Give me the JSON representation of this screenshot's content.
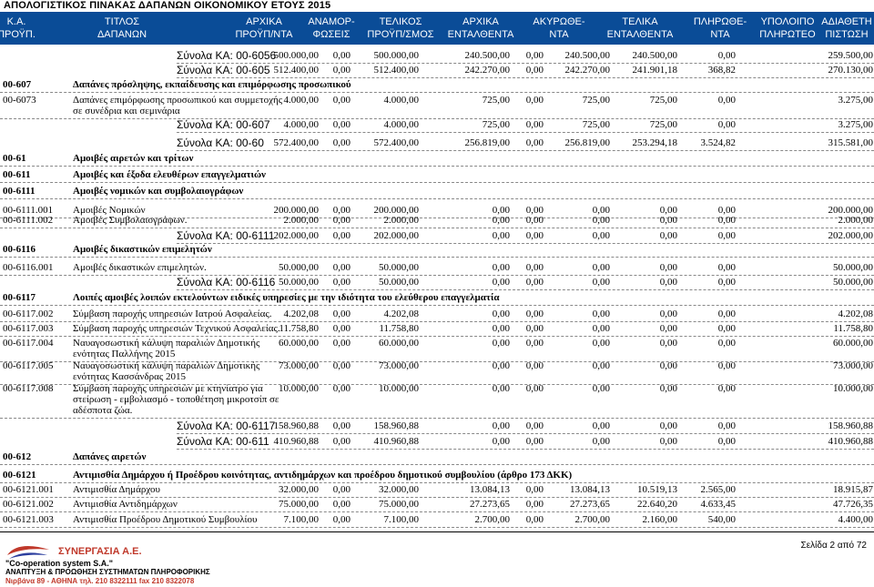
{
  "doc_title": "ΑΠΟΛΟΓΙΣΤΙΚΟΣ ΠΙΝΑΚΑΣ ΔΑΠΑΝΩΝ ΟΙΚΟΝΟΜΙΚΟΥ ΕΤΟΥΣ 2015",
  "header": {
    "columns": [
      [
        "Κ.Α.",
        "ΠΡΟΫΠ."
      ],
      [
        "ΤΙΤΛΟΣ",
        "ΔΑΠΑΝΩΝ"
      ],
      [
        "ΑΡΧΙΚΑ",
        "ΠΡΟΫΠ/ΝΤΑ"
      ],
      [
        "ΑΝΑΜΟΡ-",
        "ΦΩΣΕΙΣ"
      ],
      [
        "ΤΕΛΙΚΟΣ",
        "ΠΡΟΫΠ/ΣΜΟΣ"
      ],
      [
        "ΑΡΧΙΚΑ",
        "ΕΝΤΑΛΘΕΝΤΑ"
      ],
      [
        "ΑΚΥΡΩΘΕ-",
        "ΝΤΑ"
      ],
      [
        "ΤΕΛΙΚΑ",
        "ΕΝΤΑΛΘΕΝΤΑ"
      ],
      [
        "ΠΛΗΡΩΘΕ-",
        "ΝΤΑ"
      ],
      [
        "ΥΠΟΛΟΙΠΟ",
        "ΠΛΗΡΩΤΕΟ"
      ],
      [
        "ΑΔΙΑΘΕΤΗ",
        "ΠΙΣΤΩΣΗ"
      ]
    ]
  },
  "rows": [
    {
      "kind": "total",
      "label": "Σύνολα ΚΑ: 00-6056",
      "values": [
        "500.000,00",
        "0,00",
        "500.000,00",
        "240.500,00",
        "0,00",
        "240.500,00",
        "240.500,00",
        "0,00",
        "259.500,00"
      ]
    },
    {
      "kind": "total",
      "label": "Σύνολα ΚΑ: 00-605",
      "values": [
        "512.400,00",
        "0,00",
        "512.400,00",
        "242.270,00",
        "0,00",
        "242.270,00",
        "241.901,18",
        "368,82",
        "270.130,00"
      ]
    },
    {
      "kind": "section",
      "code": "00-607",
      "title": "Δαπάνες πρόσληψης, εκπαίδευσης και επιμόρφωσης προσωπικού"
    },
    {
      "kind": "item",
      "code": "00-6073",
      "title": [
        "Δαπάνες επιμόρφωσης προσωπικού και συμμετοχής",
        "σε συνέδρια και σεμινάρια"
      ],
      "values": [
        "4.000,00",
        "0,00",
        "4.000,00",
        "725,00",
        "0,00",
        "725,00",
        "725,00",
        "0,00",
        "3.275,00"
      ]
    },
    {
      "kind": "total",
      "label": "Σύνολα ΚΑ: 00-607",
      "values": [
        "4.000,00",
        "0,00",
        "4.000,00",
        "725,00",
        "0,00",
        "725,00",
        "725,00",
        "0,00",
        "3.275,00"
      ]
    },
    {
      "kind": "total",
      "label": "Σύνολα ΚΑ: 00-60",
      "values": [
        "572.400,00",
        "0,00",
        "572.400,00",
        "256.819,00",
        "0,00",
        "256.819,00",
        "253.294,18",
        "3.524,82",
        "315.581,00"
      ]
    },
    {
      "kind": "section",
      "code": "00-61",
      "title": "Αμοιβές αιρετών και τρίτων"
    },
    {
      "kind": "section",
      "code": "00-611",
      "title": "Αμοιβές και έξοδα ελευθέρων επαγγελματιών"
    },
    {
      "kind": "section",
      "code": "00-6111",
      "title": "Αμοιβές νομικών και συμβολαιογράφων"
    },
    {
      "kind": "item",
      "code": "00-6111.001",
      "title": [
        "Αμοιβές Νομικών"
      ],
      "values": [
        "200.000,00",
        "0,00",
        "200.000,00",
        "0,00",
        "0,00",
        "0,00",
        "0,00",
        "0,00",
        "200.000,00"
      ]
    },
    {
      "kind": "item",
      "code": "00-6111.002",
      "title": [
        "Αμοιβές Συμβολαιογράφων."
      ],
      "values": [
        "2.000,00",
        "0,00",
        "2.000,00",
        "0,00",
        "0,00",
        "0,00",
        "0,00",
        "0,00",
        "2.000,00"
      ]
    },
    {
      "kind": "total",
      "label": "Σύνολα ΚΑ: 00-6111",
      "values": [
        "202.000,00",
        "0,00",
        "202.000,00",
        "0,00",
        "0,00",
        "0,00",
        "0,00",
        "0,00",
        "202.000,00"
      ]
    },
    {
      "kind": "section",
      "code": "00-6116",
      "title": "Αμοιβές δικαστικών επιμελητών"
    },
    {
      "kind": "item",
      "code": "00-6116.001",
      "title": [
        "Αμοιβές δικαστικών επιμελητών."
      ],
      "values": [
        "50.000,00",
        "0,00",
        "50.000,00",
        "0,00",
        "0,00",
        "0,00",
        "0,00",
        "0,00",
        "50.000,00"
      ]
    },
    {
      "kind": "total",
      "label": "Σύνολα ΚΑ: 00-6116",
      "values": [
        "50.000,00",
        "0,00",
        "50.000,00",
        "0,00",
        "0,00",
        "0,00",
        "0,00",
        "0,00",
        "50.000,00"
      ]
    },
    {
      "kind": "section",
      "code": "00-6117",
      "title": "Λοιπές αμοιβές λοιπών εκτελούντων ειδικές υπηρεσίες με την ιδιότητα του ελεύθερου επαγγελματία"
    },
    {
      "kind": "item",
      "code": "00-6117.002",
      "title": [
        "Σύμβαση παροχής υπηρεσιών Ιατρού Ασφαλείας."
      ],
      "values": [
        "4.202,08",
        "0,00",
        "4.202,08",
        "0,00",
        "0,00",
        "0,00",
        "0,00",
        "0,00",
        "4.202,08"
      ]
    },
    {
      "kind": "item",
      "code": "00-6117.003",
      "title": [
        "Σύμβαση παροχής υπηρεσιών Τεχνικού Ασφαλείας."
      ],
      "values": [
        "11.758,80",
        "0,00",
        "11.758,80",
        "0,00",
        "0,00",
        "0,00",
        "0,00",
        "0,00",
        "11.758,80"
      ]
    },
    {
      "kind": "item",
      "code": "00-6117.004",
      "title": [
        "Ναυαγοσωστική κάλυψη παραλιών Δημοτικής",
        "ενότητας Παλλήνης 2015"
      ],
      "values": [
        "60.000,00",
        "0,00",
        "60.000,00",
        "0,00",
        "0,00",
        "0,00",
        "0,00",
        "0,00",
        "60.000,00"
      ]
    },
    {
      "kind": "item",
      "code": "00-6117.005",
      "title": [
        "Ναυαγοσωστική κάλυψη παραλιών Δημοτικής",
        "ενότητας Κασσάνδρας 2015"
      ],
      "values": [
        "73.000,00",
        "0,00",
        "73.000,00",
        "0,00",
        "0,00",
        "0,00",
        "0,00",
        "0,00",
        "73.000,00"
      ]
    },
    {
      "kind": "item",
      "code": "00-6117.008",
      "title": [
        "Σύμβαση παροχής υπηρεσιών με κτηνίατρο για",
        "στείρωση - εμβολιασμό - τοποθέτηση μικροτσίπ σε",
        "αδέσποτα ζώα."
      ],
      "values": [
        "10.000,00",
        "0,00",
        "10.000,00",
        "0,00",
        "0,00",
        "0,00",
        "0,00",
        "0,00",
        "10.000,00"
      ]
    },
    {
      "kind": "total",
      "label": "Σύνολα ΚΑ: 00-6117",
      "values": [
        "158.960,88",
        "0,00",
        "158.960,88",
        "0,00",
        "0,00",
        "0,00",
        "0,00",
        "0,00",
        "158.960,88"
      ]
    },
    {
      "kind": "total",
      "label": "Σύνολα ΚΑ: 00-611",
      "values": [
        "410.960,88",
        "0,00",
        "410.960,88",
        "0,00",
        "0,00",
        "0,00",
        "0,00",
        "0,00",
        "410.960,88"
      ]
    },
    {
      "kind": "section",
      "code": "00-612",
      "title": "Δαπάνες αιρετών"
    },
    {
      "kind": "section",
      "code": "00-6121",
      "title": "Αντιμισθία Δημάρχου ή Προέδρου κοινότητας, αντιδημάρχων και προέδρου δημοτικού συμβουλίου (άρθρο 173 ΔΚΚ)"
    },
    {
      "kind": "item",
      "code": "00-6121.001",
      "title": [
        "Αντιμισθία  Δημάρχου"
      ],
      "values": [
        "32.000,00",
        "0,00",
        "32.000,00",
        "13.084,13",
        "0,00",
        "13.084,13",
        "10.519,13",
        "2.565,00",
        "18.915,87"
      ]
    },
    {
      "kind": "item",
      "code": "00-6121.002",
      "title": [
        "Αντιμισθία Αντιδημάρχων"
      ],
      "values": [
        "75.000,00",
        "0,00",
        "75.000,00",
        "27.273,65",
        "0,00",
        "27.273,65",
        "22.640,20",
        "4.633,45",
        "47.726,35"
      ]
    },
    {
      "kind": "item",
      "code": "00-6121.003",
      "title": [
        "Αντιμισθία Προέδρου Δημοτικού  Συμβουλίου"
      ],
      "values": [
        "7.100,00",
        "0,00",
        "7.100,00",
        "2.700,00",
        "0,00",
        "2.700,00",
        "2.160,00",
        "540,00",
        "4.400,00"
      ]
    }
  ],
  "footer": {
    "company": "ΣΥΝΕΡΓΑΣΙΑ Α.Ε.",
    "company_en": "\"Co-operation system S.A.\"",
    "tagline": "ΑΝΑΠΤΥΞΗ & ΠΡΟΩΘΗΣΗ ΣΥΣΤΗΜΑΤΩΝ ΠΛΗΡΟΦΟΡΙΚΗΣ",
    "address": "Νιρβάνα 89 - ΑΘΗΝΑ τηλ. 210 8322111 fax 210 8322078",
    "page": "Σελίδα 2 από 72"
  }
}
